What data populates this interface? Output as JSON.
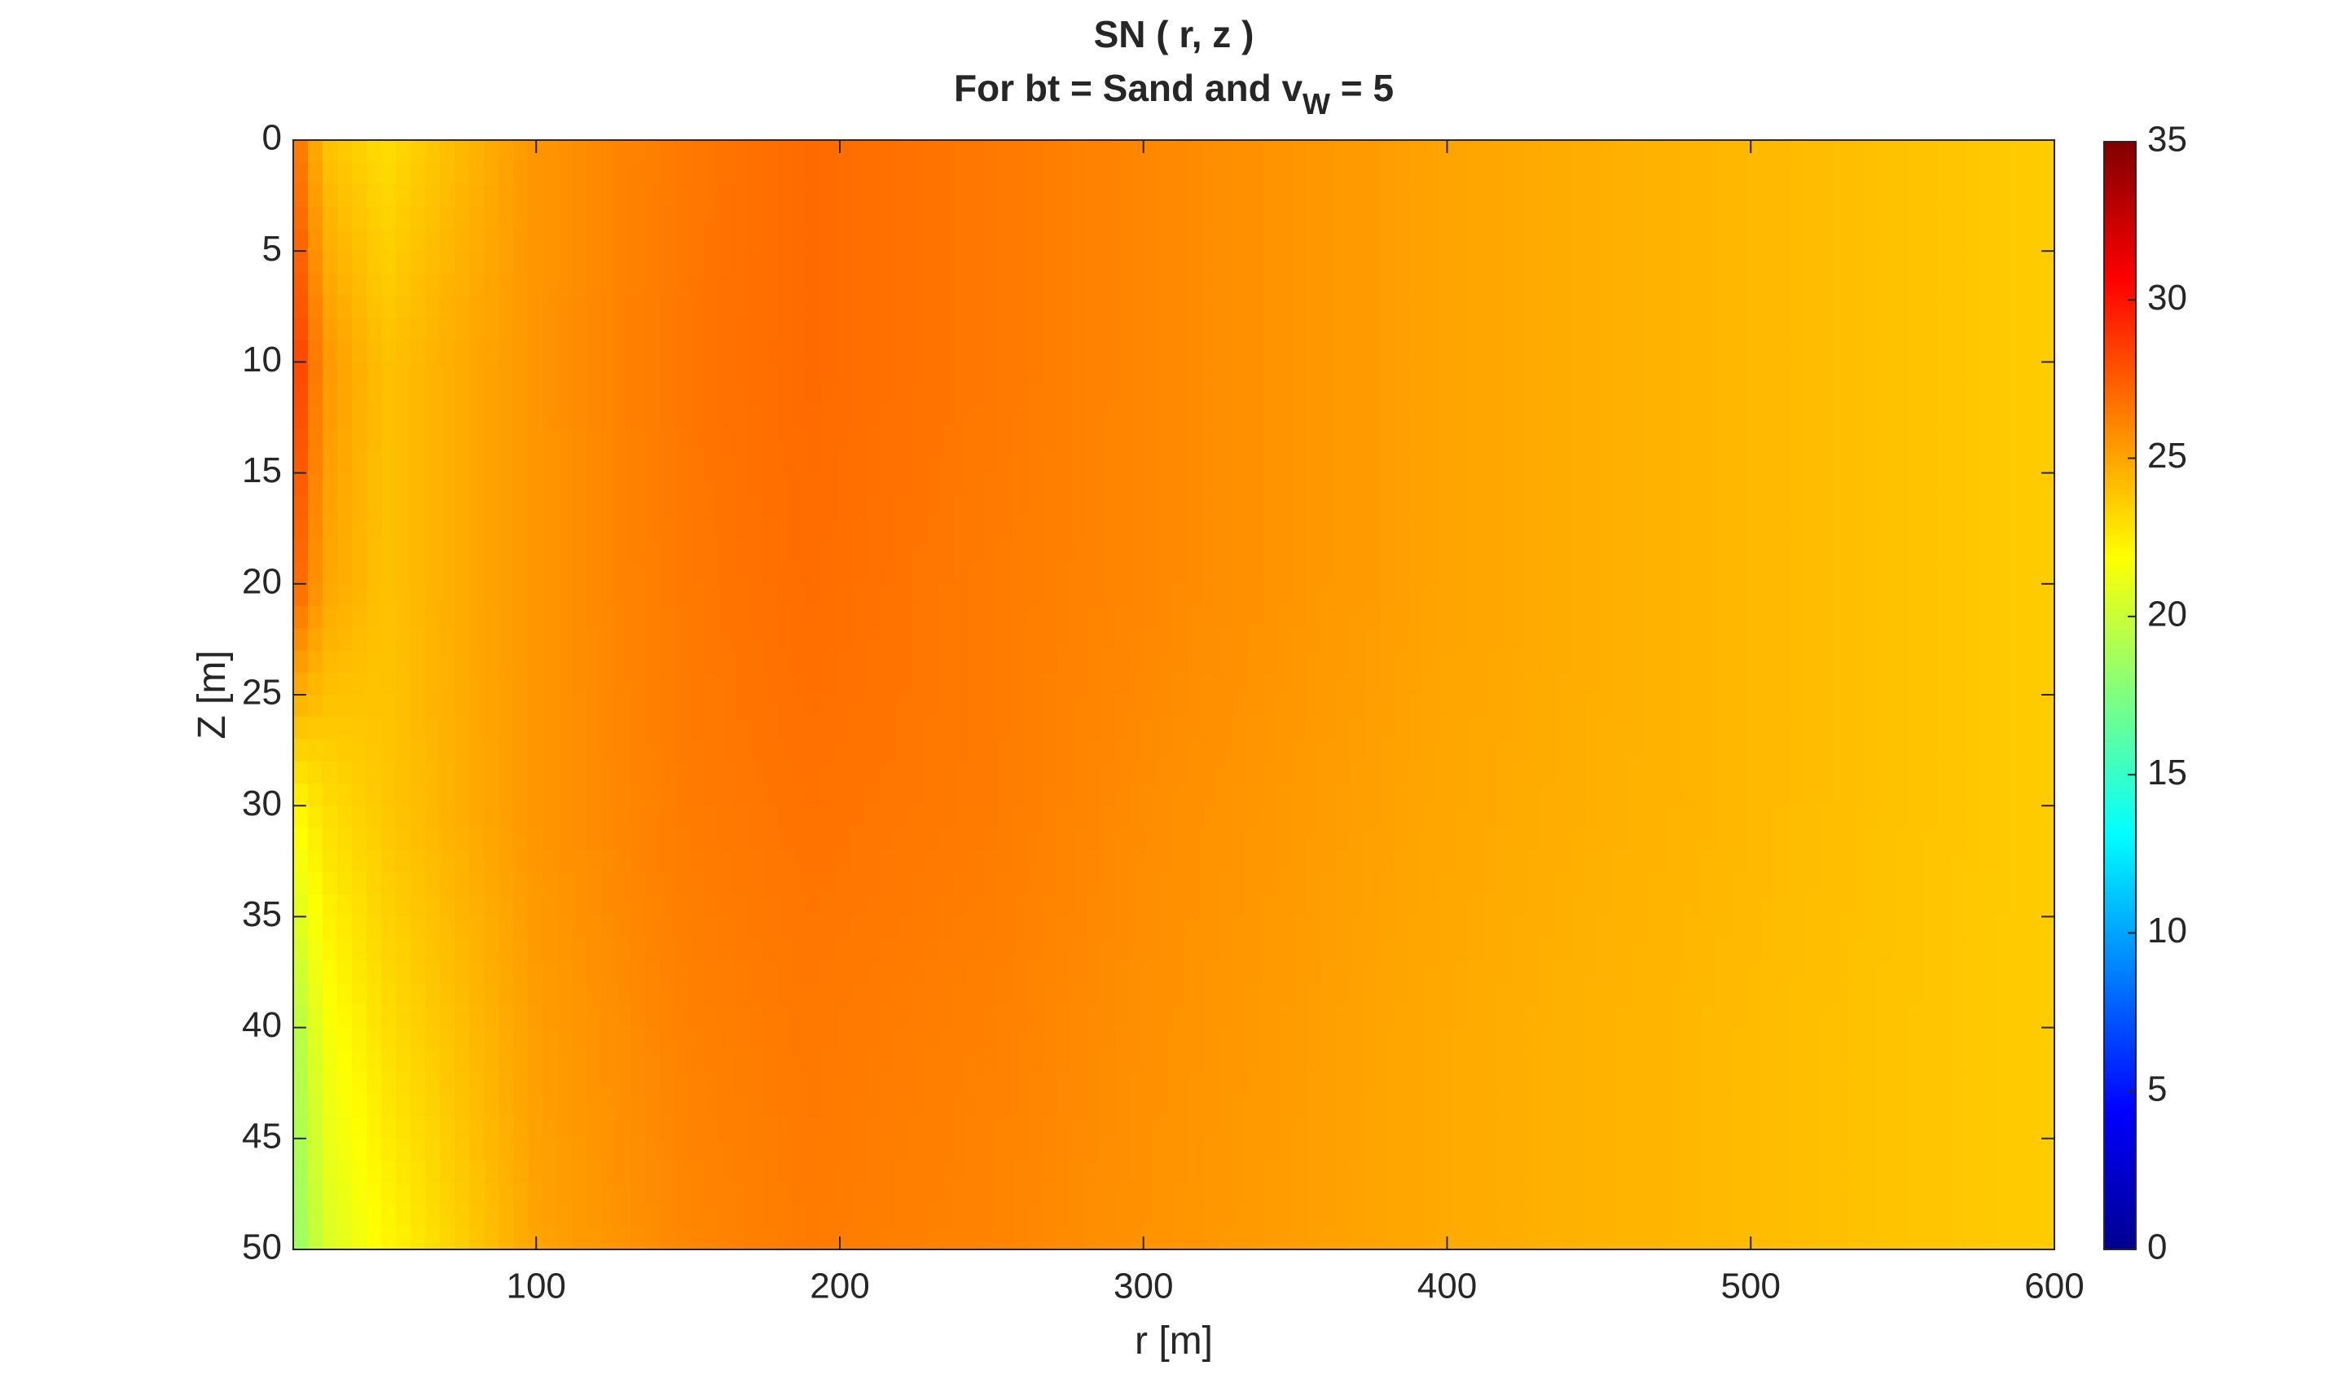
{
  "chart_data": {
    "type": "heatmap",
    "title": "SN ( r, z )",
    "subtitle_parts": {
      "prefix": "For bt = Sand and v",
      "subscript": "W",
      "suffix": " = 5"
    },
    "xlabel": "r [m]",
    "ylabel": "Z [m]",
    "xlim": [
      20,
      600
    ],
    "ylim": [
      0,
      50
    ],
    "y_reversed": true,
    "x_ticks": [
      100,
      200,
      300,
      400,
      500,
      600
    ],
    "y_ticks": [
      0,
      5,
      10,
      15,
      20,
      25,
      30,
      35,
      40,
      45,
      50
    ],
    "colorbar": {
      "colormap": "jet",
      "clim": [
        0,
        35
      ],
      "ticks": [
        0,
        5,
        10,
        15,
        20,
        25,
        30,
        35
      ]
    },
    "approx_field": {
      "r": [
        20,
        30,
        50,
        100,
        150,
        190,
        250,
        300,
        400,
        500,
        600
      ],
      "z": [
        0,
        10,
        20,
        30,
        40,
        50
      ],
      "values": [
        [
          27,
          24,
          23,
          25.5,
          26.5,
          27,
          26.5,
          26,
          25,
          24.3,
          23.6
        ],
        [
          29,
          25.5,
          24,
          25.5,
          26.6,
          27,
          26.5,
          26,
          25,
          24.3,
          23.6
        ],
        [
          27.5,
          25,
          24,
          25.5,
          26.5,
          26.9,
          26.4,
          26,
          25,
          24.3,
          23.6
        ],
        [
          22,
          23,
          23.8,
          25.5,
          26.4,
          26.7,
          26.4,
          25.8,
          24.9,
          24.3,
          23.6
        ],
        [
          19,
          21.5,
          23,
          25.2,
          26.2,
          26.5,
          26.2,
          25.7,
          24.8,
          24.2,
          23.6
        ],
        [
          18,
          20.5,
          22,
          25,
          26,
          26.4,
          26.1,
          25.6,
          24.8,
          24.2,
          23.6
        ]
      ]
    }
  }
}
